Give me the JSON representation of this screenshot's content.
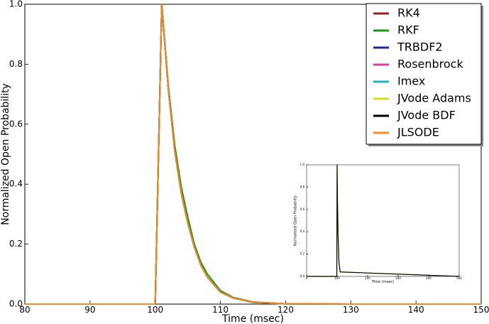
{
  "chart_data": [
    {
      "type": "line",
      "xlabel": "Time (msec)",
      "ylabel": "Normalized Open Probability",
      "xlim": [
        80,
        150
      ],
      "ylim": [
        0,
        1
      ],
      "xticks": [
        80,
        90,
        100,
        110,
        120,
        130,
        140,
        150
      ],
      "yticks": [
        {
          "value": 0,
          "label": "0.0"
        },
        0.2,
        0.4,
        0.6,
        0.8,
        {
          "value": 1,
          "label": "1.0"
        }
      ],
      "legend": "upper right",
      "x": [
        80,
        100,
        101,
        102,
        103,
        104,
        105,
        106,
        107,
        108,
        110,
        112,
        115,
        120,
        130,
        150
      ],
      "series": [
        {
          "name": "RK4",
          "color": "#a01c1c",
          "values": [
            0,
            0,
            1.0,
            0.72,
            0.51,
            0.37,
            0.27,
            0.19,
            0.13,
            0.09,
            0.04,
            0.02,
            0.006,
            0.001,
            0,
            0
          ]
        },
        {
          "name": "RKF",
          "color": "#1a9a1a",
          "values": [
            0,
            0,
            1.0,
            0.73,
            0.53,
            0.39,
            0.29,
            0.2,
            0.14,
            0.1,
            0.045,
            0.022,
            0.007,
            0.001,
            0,
            0
          ]
        },
        {
          "name": "TRBDF2",
          "color": "#1a2a9a",
          "values": [
            0,
            0,
            1.0,
            0.72,
            0.51,
            0.37,
            0.27,
            0.19,
            0.13,
            0.09,
            0.04,
            0.02,
            0.006,
            0.001,
            0,
            0
          ]
        },
        {
          "name": "Rosenbrock",
          "color": "#e0409a",
          "values": [
            0,
            0,
            1.0,
            0.72,
            0.51,
            0.37,
            0.27,
            0.19,
            0.13,
            0.09,
            0.04,
            0.02,
            0.006,
            0.001,
            0,
            0
          ]
        },
        {
          "name": "Imex",
          "color": "#20b0d0",
          "values": [
            0,
            0,
            1.0,
            0.72,
            0.51,
            0.37,
            0.27,
            0.19,
            0.13,
            0.09,
            0.04,
            0.02,
            0.006,
            0.001,
            0,
            0
          ]
        },
        {
          "name": "JVode Adams",
          "color": "#d8d820",
          "values": [
            0,
            0,
            1.0,
            0.72,
            0.51,
            0.37,
            0.27,
            0.19,
            0.13,
            0.09,
            0.04,
            0.02,
            0.006,
            0.001,
            0,
            0
          ]
        },
        {
          "name": "JVode BDF",
          "color": "#000000",
          "values": [
            0,
            0,
            1.0,
            0.72,
            0.51,
            0.37,
            0.27,
            0.19,
            0.13,
            0.09,
            0.04,
            0.02,
            0.006,
            0.001,
            0,
            0
          ]
        },
        {
          "name": "JLSODE",
          "color": "#f08c28",
          "values": [
            0,
            0,
            1.0,
            0.72,
            0.51,
            0.37,
            0.27,
            0.19,
            0.13,
            0.09,
            0.04,
            0.02,
            0.006,
            0.001,
            0,
            0
          ]
        }
      ]
    },
    {
      "type": "line",
      "xlabel": "Time (msec)",
      "ylabel": "Normalized Open Probability",
      "xlim": [
        0,
        500
      ],
      "ylim": [
        0,
        1
      ],
      "xticks": [
        0,
        100,
        200,
        300,
        400,
        500
      ],
      "yticks": [
        {
          "value": 0,
          "label": "0.0"
        },
        0.2,
        0.4,
        0.6,
        0.8,
        {
          "value": 1,
          "label": "1.0"
        }
      ],
      "x": [
        0,
        99,
        100,
        101,
        103,
        106,
        110,
        500
      ],
      "series": [
        {
          "color": "#d8d820",
          "values": [
            0,
            0,
            1.0,
            0.72,
            0.37,
            0.13,
            0.04,
            0
          ]
        },
        {
          "color": "#000000",
          "values": [
            0,
            0,
            1.0,
            0.72,
            0.37,
            0.13,
            0.04,
            0
          ]
        }
      ]
    }
  ]
}
